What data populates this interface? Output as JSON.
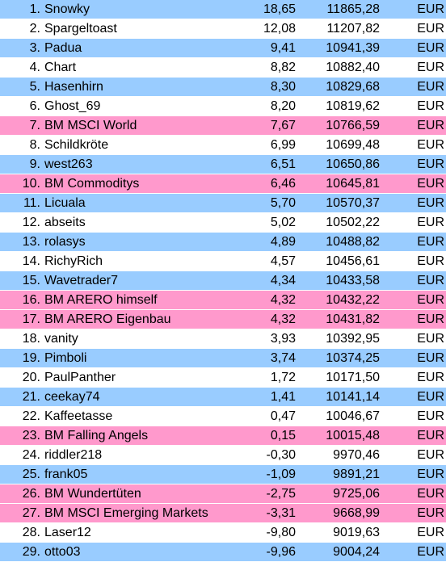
{
  "currency_label": "EUR",
  "colors": {
    "blue": "#99ccff",
    "white": "#ffffff",
    "pink": "#ff99cc"
  },
  "rows": [
    {
      "rank": "1.",
      "name": "Snowky",
      "pct": "18,65",
      "value": "11865,28",
      "currency": "EUR",
      "color": "blue"
    },
    {
      "rank": "2.",
      "name": "Spargeltoast",
      "pct": "12,08",
      "value": "11207,82",
      "currency": "EUR",
      "color": "white"
    },
    {
      "rank": "3.",
      "name": "Padua",
      "pct": "9,41",
      "value": "10941,39",
      "currency": "EUR",
      "color": "blue"
    },
    {
      "rank": "4.",
      "name": "Chart",
      "pct": "8,82",
      "value": "10882,40",
      "currency": "EUR",
      "color": "white"
    },
    {
      "rank": "5.",
      "name": "Hasenhirn",
      "pct": "8,30",
      "value": "10829,68",
      "currency": "EUR",
      "color": "blue"
    },
    {
      "rank": "6.",
      "name": "Ghost_69",
      "pct": "8,20",
      "value": "10819,62",
      "currency": "EUR",
      "color": "white"
    },
    {
      "rank": "7.",
      "name": "BM MSCI World",
      "pct": "7,67",
      "value": "10766,59",
      "currency": "EUR",
      "color": "pink"
    },
    {
      "rank": "8.",
      "name": "Schildkröte",
      "pct": "6,99",
      "value": "10699,48",
      "currency": "EUR",
      "color": "white"
    },
    {
      "rank": "9.",
      "name": "west263",
      "pct": "6,51",
      "value": "10650,86",
      "currency": "EUR",
      "color": "blue"
    },
    {
      "rank": "10.",
      "name": "BM Commoditys",
      "pct": "6,46",
      "value": "10645,81",
      "currency": "EUR",
      "color": "pink"
    },
    {
      "rank": "11.",
      "name": "Licuala",
      "pct": "5,70",
      "value": "10570,37",
      "currency": "EUR",
      "color": "blue"
    },
    {
      "rank": "12.",
      "name": "abseits",
      "pct": "5,02",
      "value": "10502,22",
      "currency": "EUR",
      "color": "white"
    },
    {
      "rank": "13.",
      "name": "rolasys",
      "pct": "4,89",
      "value": "10488,82",
      "currency": "EUR",
      "color": "blue"
    },
    {
      "rank": "14.",
      "name": "RichyRich",
      "pct": "4,57",
      "value": "10456,61",
      "currency": "EUR",
      "color": "white"
    },
    {
      "rank": "15.",
      "name": "Wavetrader7",
      "pct": "4,34",
      "value": "10433,58",
      "currency": "EUR",
      "color": "blue"
    },
    {
      "rank": "16.",
      "name": "BM ARERO himself",
      "pct": "4,32",
      "value": "10432,22",
      "currency": "EUR",
      "color": "pink"
    },
    {
      "rank": "17.",
      "name": "BM ARERO Eigenbau",
      "pct": "4,32",
      "value": "10431,82",
      "currency": "EUR",
      "color": "pink"
    },
    {
      "rank": "18.",
      "name": "vanity",
      "pct": "3,93",
      "value": "10392,95",
      "currency": "EUR",
      "color": "white"
    },
    {
      "rank": "19.",
      "name": "Pimboli",
      "pct": "3,74",
      "value": "10374,25",
      "currency": "EUR",
      "color": "blue"
    },
    {
      "rank": "20.",
      "name": "PaulPanther",
      "pct": "1,72",
      "value": "10171,50",
      "currency": "EUR",
      "color": "white"
    },
    {
      "rank": "21.",
      "name": "ceekay74",
      "pct": "1,41",
      "value": "10141,14",
      "currency": "EUR",
      "color": "blue"
    },
    {
      "rank": "22.",
      "name": "Kaffeetasse",
      "pct": "0,47",
      "value": "10046,67",
      "currency": "EUR",
      "color": "white"
    },
    {
      "rank": "23.",
      "name": "BM Falling Angels",
      "pct": "0,15",
      "value": "10015,48",
      "currency": "EUR",
      "color": "pink"
    },
    {
      "rank": "24.",
      "name": "riddler218",
      "pct": "-0,30",
      "value": "9970,46",
      "currency": "EUR",
      "color": "white"
    },
    {
      "rank": "25.",
      "name": "frank05",
      "pct": "-1,09",
      "value": "9891,21",
      "currency": "EUR",
      "color": "blue"
    },
    {
      "rank": "26.",
      "name": "BM Wundertüten",
      "pct": "-2,75",
      "value": "9725,06",
      "currency": "EUR",
      "color": "pink"
    },
    {
      "rank": "27.",
      "name": "BM MSCI Emerging Markets",
      "pct": "-3,31",
      "value": "9668,99",
      "currency": "EUR",
      "color": "pink"
    },
    {
      "rank": "28.",
      "name": "Laser12",
      "pct": "-9,80",
      "value": "9019,63",
      "currency": "EUR",
      "color": "white"
    },
    {
      "rank": "29.",
      "name": "otto03",
      "pct": "-9,96",
      "value": "9004,24",
      "currency": "EUR",
      "color": "blue"
    }
  ]
}
